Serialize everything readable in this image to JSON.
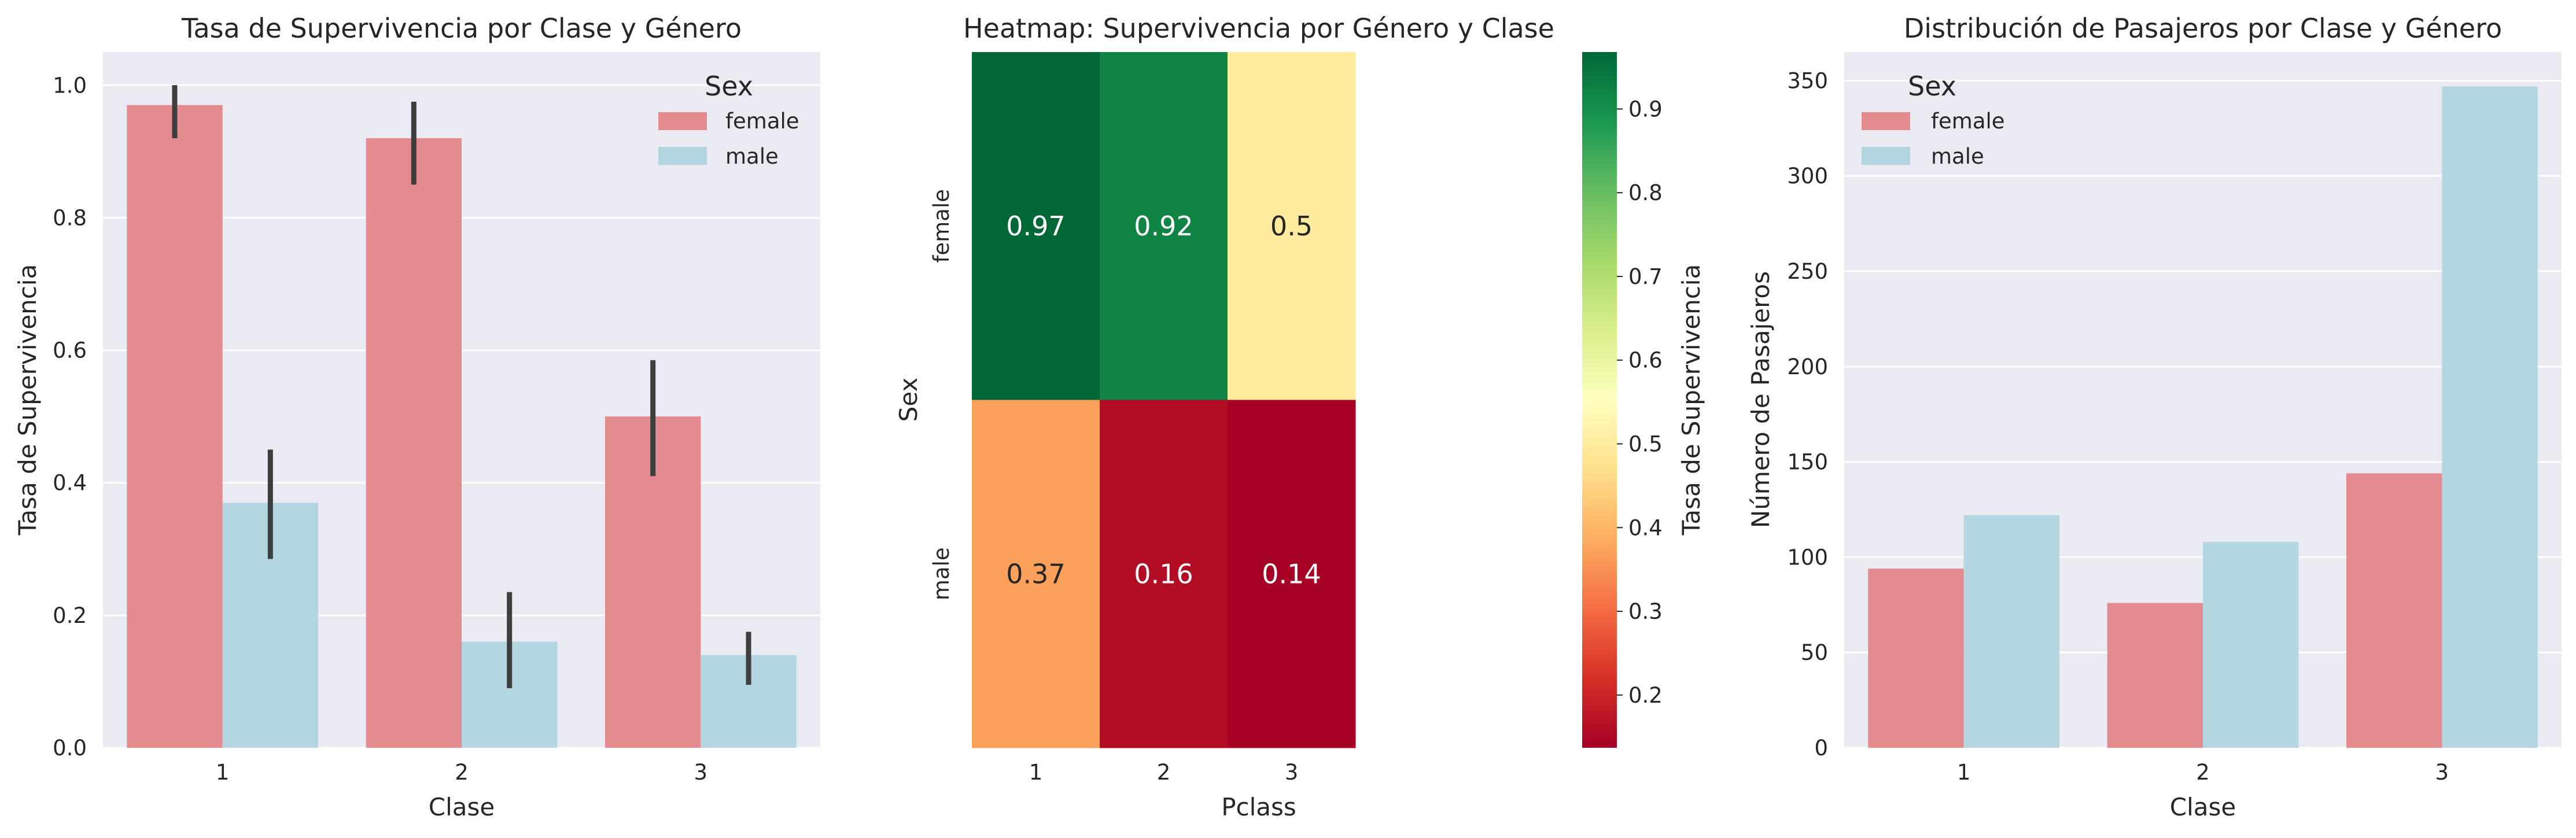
{
  "colors": {
    "female": "#e38b8e",
    "male": "#b3d6e0",
    "axes_bg": "#eaeaf2",
    "grid": "#ffffff",
    "errbar": "#3e3e3e",
    "heat_low": "#a50026",
    "heat_high": "#006837"
  },
  "chart_data": [
    {
      "type": "bar",
      "title": "Tasa de Supervivencia por Clase y Género",
      "xlabel": "Clase",
      "ylabel": "Tasa de Supervivencia",
      "categories": [
        "1",
        "2",
        "3"
      ],
      "ylim": [
        0,
        1.05
      ],
      "yticks": [
        "0.0",
        "0.2",
        "0.4",
        "0.6",
        "0.8",
        "1.0"
      ],
      "grid": true,
      "legend": {
        "title": "Sex",
        "placement": "top-right"
      },
      "series": [
        {
          "name": "female",
          "values": [
            0.97,
            0.92,
            0.5
          ],
          "ci": [
            [
              0.92,
              1.0
            ],
            [
              0.85,
              0.975
            ],
            [
              0.41,
              0.585
            ]
          ]
        },
        {
          "name": "male",
          "values": [
            0.37,
            0.16,
            0.14
          ],
          "ci": [
            [
              0.285,
              0.45
            ],
            [
              0.09,
              0.235
            ],
            [
              0.095,
              0.175
            ]
          ]
        }
      ]
    },
    {
      "type": "heatmap",
      "title": "Heatmap: Supervivencia por Género y Clase",
      "xlabel": "Pclass",
      "ylabel": "Sex",
      "x": [
        "1",
        "2",
        "3"
      ],
      "y": [
        "female",
        "male"
      ],
      "values": [
        [
          0.97,
          0.92,
          0.5
        ],
        [
          0.37,
          0.16,
          0.14
        ]
      ],
      "annotations": [
        [
          "0.97",
          "0.92",
          "0.5"
        ],
        [
          "0.37",
          "0.16",
          "0.14"
        ]
      ],
      "colorbar": {
        "label": "Tasa de Supervivencia",
        "range": [
          0.137,
          0.968
        ],
        "ticks": [
          "0.2",
          "0.3",
          "0.4",
          "0.5",
          "0.6",
          "0.7",
          "0.8",
          "0.9"
        ],
        "colormap": "RdYlGn"
      }
    },
    {
      "type": "bar",
      "title": "Distribución de Pasajeros por Clase y Género",
      "xlabel": "Clase",
      "ylabel": "Número de Pasajeros",
      "categories": [
        "1",
        "2",
        "3"
      ],
      "ylim": [
        0,
        365
      ],
      "yticks": [
        "0",
        "50",
        "100",
        "150",
        "200",
        "250",
        "300",
        "350"
      ],
      "grid": true,
      "legend": {
        "title": "Sex",
        "placement": "top-left"
      },
      "series": [
        {
          "name": "female",
          "values": [
            94,
            76,
            144
          ]
        },
        {
          "name": "male",
          "values": [
            122,
            108,
            347
          ]
        }
      ]
    }
  ]
}
